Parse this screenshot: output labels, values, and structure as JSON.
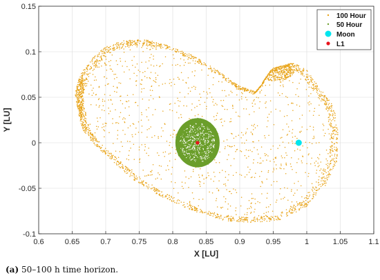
{
  "chart_data": {
    "type": "scatter",
    "title": "",
    "xlabel": "X [LU]",
    "ylabel": "Y [LU]",
    "xlim": [
      0.6,
      1.1
    ],
    "ylim": [
      -0.1,
      0.15
    ],
    "xticks": [
      0.6,
      0.65,
      0.7,
      0.75,
      0.8,
      0.85,
      0.9,
      0.95,
      1,
      1.05,
      1.1
    ],
    "yticks": [
      -0.1,
      -0.05,
      0,
      0.05,
      0.1,
      0.15
    ],
    "xtick_labels": [
      "0.6",
      "0.65",
      "0.7",
      "0.75",
      "0.8",
      "0.85",
      "0.9",
      "0.95",
      "1",
      "1.05",
      "1.1"
    ],
    "ytick_labels": [
      "-0.1",
      "-0.05",
      "0",
      "0.05",
      "0.1",
      "0.15"
    ],
    "grid": true,
    "legend_position": "top-right",
    "series": [
      {
        "name": "100 Hour",
        "color": "#E8A317",
        "marker": "dot",
        "shape": "kidney-shaped point cloud",
        "boundary": [
          [
            0.66,
            0.03
          ],
          [
            0.654,
            0.055
          ],
          [
            0.662,
            0.075
          ],
          [
            0.68,
            0.093
          ],
          [
            0.7,
            0.106
          ],
          [
            0.73,
            0.113
          ],
          [
            0.76,
            0.113
          ],
          [
            0.79,
            0.108
          ],
          [
            0.83,
            0.096
          ],
          [
            0.87,
            0.078
          ],
          [
            0.9,
            0.062
          ],
          [
            0.925,
            0.056
          ],
          [
            0.935,
            0.065
          ],
          [
            0.95,
            0.082
          ],
          [
            0.98,
            0.088
          ],
          [
            1.0,
            0.08
          ],
          [
            1.02,
            0.06
          ],
          [
            1.04,
            0.04
          ],
          [
            1.048,
            0.01
          ],
          [
            1.045,
            -0.02
          ],
          [
            1.03,
            -0.045
          ],
          [
            1.0,
            -0.07
          ],
          [
            0.96,
            -0.085
          ],
          [
            0.92,
            -0.088
          ],
          [
            0.88,
            -0.086
          ],
          [
            0.83,
            -0.075
          ],
          [
            0.78,
            -0.058
          ],
          [
            0.74,
            -0.04
          ],
          [
            0.71,
            -0.02
          ],
          [
            0.68,
            0.0
          ],
          [
            0.665,
            0.015
          ]
        ]
      },
      {
        "name": "50 Hour",
        "color": "#6B9E2B",
        "marker": "dot",
        "shape": "dense elliptical point cloud",
        "center": [
          0.837,
          0.0
        ],
        "radius": [
          0.033,
          0.027
        ]
      },
      {
        "name": "Moon",
        "color": "#00E5EE",
        "marker": "circle",
        "points": [
          [
            0.988,
            0.0
          ]
        ]
      },
      {
        "name": "L1",
        "color": "#E8141C",
        "marker": "circle",
        "points": [
          [
            0.837,
            0.0
          ]
        ]
      }
    ]
  },
  "caption": {
    "tag": "(a)",
    "text": "50–100 h time horizon."
  }
}
